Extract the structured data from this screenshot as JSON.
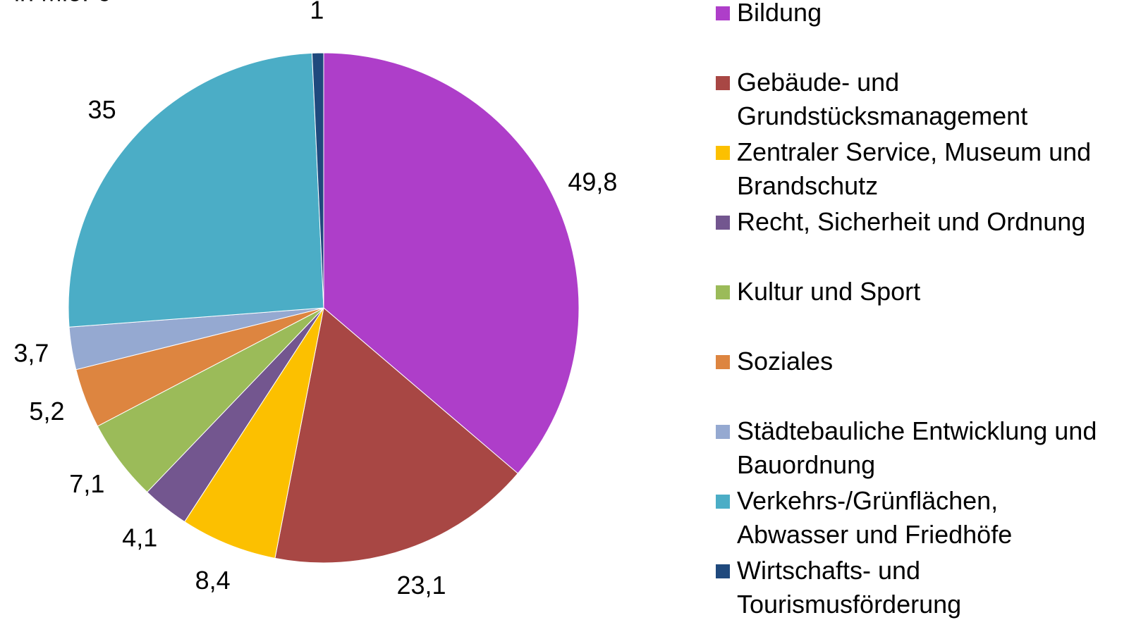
{
  "chart_data": {
    "type": "pie",
    "subtitle": "in Mio. €",
    "categories": [
      "Bildung",
      "Gebäude- und Grundstücksmanagement",
      "Zentraler Service, Museum und Brandschutz",
      "Recht, Sicherheit und Ordnung",
      "Kultur und Sport",
      "Soziales",
      "Städtebauliche Entwicklung und Bauordnung",
      "Verkehrs-/Grünflächen, Abwasser und Friedhöfe",
      "Wirtschafts- und Tourismusförderung"
    ],
    "values": [
      49.8,
      23.1,
      8.4,
      4.1,
      7.1,
      5.2,
      3.7,
      35,
      1
    ],
    "value_labels": [
      "49,8",
      "23,1",
      "8,4",
      "4,1",
      "7,1",
      "5,2",
      "3,7",
      "35",
      "1"
    ],
    "colors": [
      "#ae3ec9",
      "#a84744",
      "#fcc000",
      "#73568f",
      "#9bbb59",
      "#dd8540",
      "#95a9d1",
      "#4badc6",
      "#1f497d"
    ],
    "legend": "right"
  }
}
